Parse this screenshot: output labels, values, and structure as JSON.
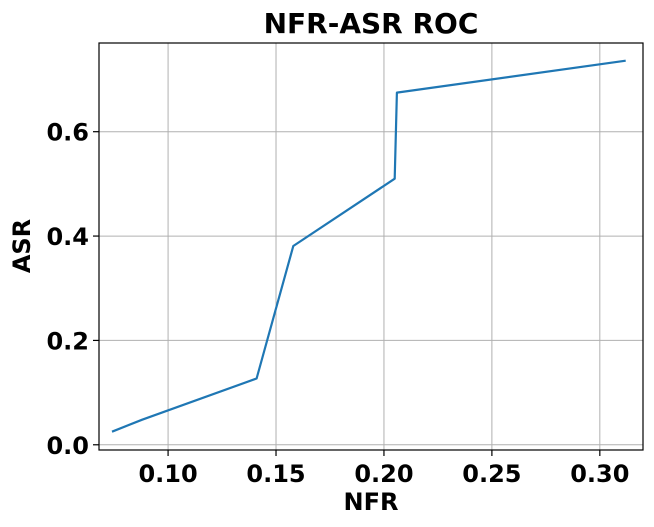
{
  "chart_data": {
    "type": "line",
    "title": "NFR-ASR ROC",
    "xlabel": "NFR",
    "ylabel": "ASR",
    "xlim": [
      0.068,
      0.32
    ],
    "ylim": [
      -0.01,
      0.77
    ],
    "xticks": [
      0.1,
      0.15,
      0.2,
      0.25,
      0.3
    ],
    "xtick_labels": [
      "0.10",
      "0.15",
      "0.20",
      "0.25",
      "0.30"
    ],
    "yticks": [
      0.0,
      0.2,
      0.4,
      0.6
    ],
    "ytick_labels": [
      "0.0",
      "0.2",
      "0.4",
      "0.6"
    ],
    "grid": true,
    "legend": false,
    "series": [
      {
        "color": "#1f77b4",
        "x": [
          0.074,
          0.088,
          0.141,
          0.158,
          0.205,
          0.206,
          0.312
        ],
        "y": [
          0.025,
          0.048,
          0.127,
          0.381,
          0.51,
          0.675,
          0.736
        ]
      }
    ]
  }
}
